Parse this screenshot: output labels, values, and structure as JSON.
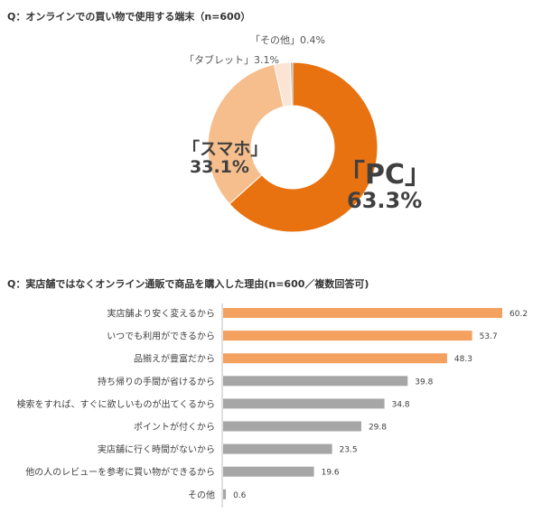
{
  "chart_data": [
    {
      "type": "pie",
      "title": "Q：オンラインでの買い物で使用する端末（n=600）",
      "slices": [
        {
          "label": "「PC」",
          "value": 63.3,
          "value_label": "63.3%",
          "color": "#E8720F"
        },
        {
          "label": "「スマホ」",
          "value": 33.1,
          "value_label": "33.1%",
          "color": "#F6BE8C"
        },
        {
          "label": "「タブレット」",
          "value": 3.1,
          "value_label": "3.1%",
          "color": "#FBE4D3"
        },
        {
          "label": "「その他」",
          "value": 0.4,
          "value_label": "0.4%",
          "color": "#9E9E9E"
        }
      ]
    },
    {
      "type": "bar",
      "orientation": "horizontal",
      "title": "Q：実店舗ではなくオンライン通販で商品を購入した理由(n=600／複数回答可)",
      "categories": [
        "実店舗より安く変えるから",
        "いつでも利用ができるから",
        "品揃えが豊富だから",
        "持ち帰りの手間が省けるから",
        "検索をすれば、すぐに欲しいものが出てくるから",
        "ポイントが付くから",
        "実店舗に行く時間がないから",
        "他の人のレビューを参考に買い物ができるから",
        "その他"
      ],
      "values": [
        60.2,
        53.7,
        48.3,
        39.8,
        34.8,
        29.8,
        23.5,
        19.6,
        0.6
      ],
      "value_labels": [
        "60.2",
        "53.7",
        "48.3",
        "39.8",
        "34.8",
        "29.8",
        "23.5",
        "19.6",
        "0.6"
      ],
      "highlight_color": "#F4A160",
      "base_color": "#A6A6A6",
      "highlight_count": 3,
      "xlim": [
        0,
        60.2
      ]
    }
  ]
}
